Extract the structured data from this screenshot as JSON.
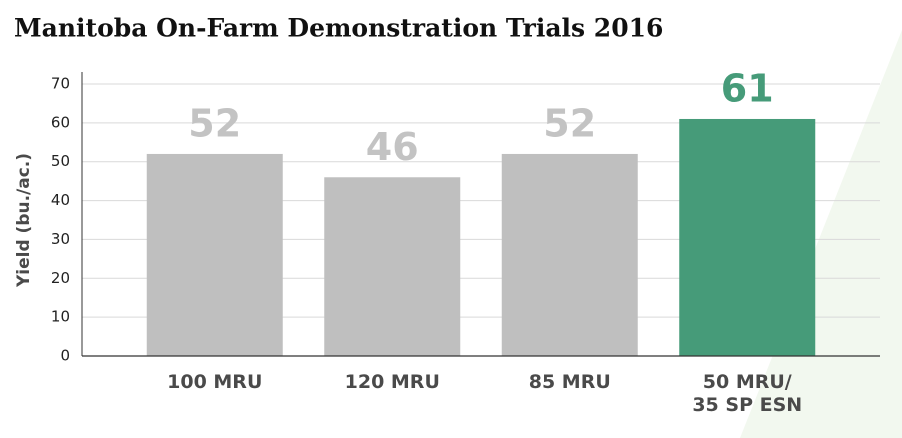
{
  "chart_data": {
    "type": "bar",
    "title": "Manitoba On-Farm Demonstration Trials 2016",
    "y_label": "Yield (bu./ac.)",
    "categories": [
      "100 MRU",
      "120 MRU",
      "85 MRU",
      "50 MRU/\n35 SP ESN"
    ],
    "values": [
      52,
      46,
      52,
      61
    ],
    "colors": [
      "#bfbfbf",
      "#bfbfbf",
      "#bfbfbf",
      "#469b79"
    ],
    "label_colors": [
      "#c3c3c3",
      "#c3c3c3",
      "#c3c3c3",
      "#469b79"
    ],
    "ylim": [
      0,
      70
    ],
    "yticks": [
      0,
      10,
      20,
      30,
      40,
      50,
      60,
      70
    ],
    "grid": true
  }
}
